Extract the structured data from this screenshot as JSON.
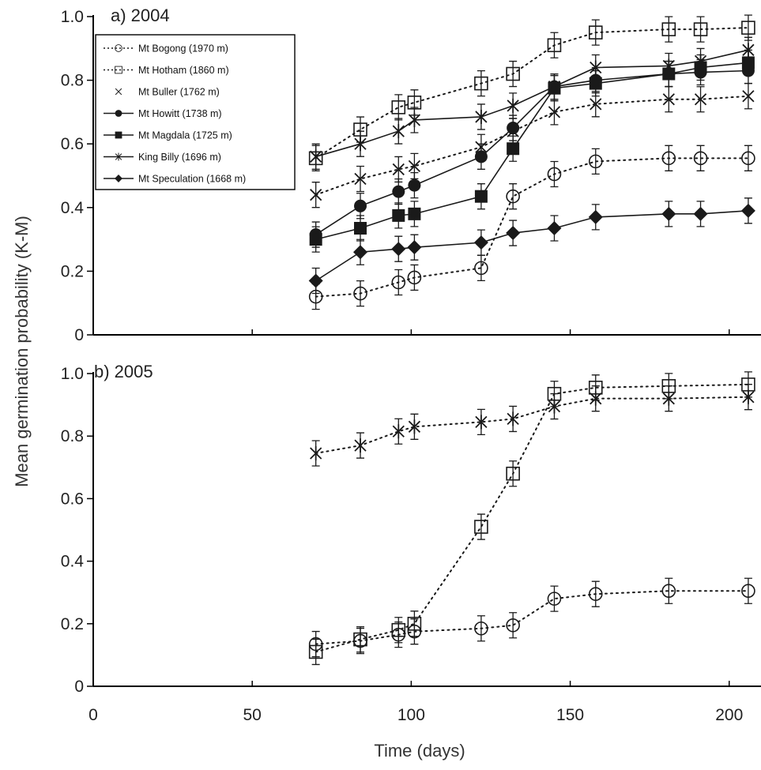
{
  "chart_data": {
    "type": "line",
    "xlabel": "Time (days)",
    "ylabel": "Mean germination probability (K-M)",
    "xlim": [
      0,
      210
    ],
    "ylim": [
      0,
      1.0
    ],
    "x_ticks": [
      "0",
      "50",
      "100",
      "150",
      "200"
    ],
    "y_ticks": [
      "0",
      "0.2",
      "0.4",
      "0.6",
      "0.8",
      "1.0"
    ],
    "legend_position": "top-left of panel a",
    "panels": [
      {
        "label": "a) 2004",
        "series": [
          {
            "name": "Mt Bogong (1970 m)",
            "marker": "open-circle",
            "line": "dotted",
            "x": [
              70,
              84,
              96,
              101,
              122,
              132,
              145,
              158,
              181,
              191,
              206
            ],
            "y": [
              0.12,
              0.13,
              0.165,
              0.18,
              0.21,
              0.435,
              0.505,
              0.545,
              0.555,
              0.555,
              0.555
            ]
          },
          {
            "name": "Mt Hotham (1860 m)",
            "marker": "open-square",
            "line": "dotted",
            "x": [
              70,
              84,
              96,
              101,
              122,
              132,
              145,
              158,
              181,
              191,
              206
            ],
            "y": [
              0.555,
              0.645,
              0.715,
              0.73,
              0.79,
              0.82,
              0.91,
              0.95,
              0.96,
              0.96,
              0.965
            ]
          },
          {
            "name": "Mt Buller (1762 m)",
            "marker": "x",
            "line": "dotted",
            "x": [
              70,
              84,
              96,
              101,
              122,
              132,
              145,
              158,
              181,
              191,
              206
            ],
            "y": [
              0.44,
              0.49,
              0.52,
              0.53,
              0.59,
              0.64,
              0.7,
              0.725,
              0.74,
              0.74,
              0.75
            ]
          },
          {
            "name": "Mt Howitt (1738 m)",
            "marker": "filled-circle",
            "line": "solid",
            "x": [
              70,
              84,
              96,
              101,
              122,
              132,
              145,
              158,
              181,
              191,
              206
            ],
            "y": [
              0.315,
              0.405,
              0.45,
              0.47,
              0.56,
              0.65,
              0.78,
              0.8,
              0.82,
              0.825,
              0.83
            ]
          },
          {
            "name": "Mt Magdala (1725 m)",
            "marker": "filled-square",
            "line": "solid",
            "x": [
              70,
              84,
              96,
              101,
              122,
              132,
              145,
              158,
              181,
              191,
              206
            ],
            "y": [
              0.3,
              0.335,
              0.375,
              0.38,
              0.435,
              0.585,
              0.775,
              0.79,
              0.82,
              0.84,
              0.855
            ]
          },
          {
            "name": "King Billy (1696 m)",
            "marker": "star",
            "line": "solid",
            "x": [
              70,
              84,
              96,
              101,
              122,
              132,
              145,
              158,
              181,
              191,
              206
            ],
            "y": [
              0.56,
              0.6,
              0.64,
              0.675,
              0.685,
              0.72,
              0.78,
              0.84,
              0.845,
              0.86,
              0.895
            ]
          },
          {
            "name": "Mt Speculation (1668 m)",
            "marker": "filled-diamond",
            "line": "solid",
            "x": [
              70,
              84,
              96,
              101,
              122,
              132,
              145,
              158,
              181,
              191,
              206
            ],
            "y": [
              0.17,
              0.26,
              0.27,
              0.275,
              0.29,
              0.32,
              0.335,
              0.37,
              0.38,
              0.38,
              0.39
            ]
          }
        ]
      },
      {
        "label": "b) 2005",
        "series": [
          {
            "name": "Mt Bogong (1970 m)",
            "marker": "open-circle",
            "line": "dotted",
            "x": [
              70,
              84,
              96,
              101,
              122,
              132,
              145,
              158,
              181,
              206
            ],
            "y": [
              0.135,
              0.145,
              0.165,
              0.175,
              0.185,
              0.195,
              0.28,
              0.295,
              0.305,
              0.305
            ]
          },
          {
            "name": "Mt Hotham (1860 m)",
            "marker": "open-square",
            "line": "dotted",
            "x": [
              70,
              84,
              96,
              101,
              122,
              132,
              145,
              158,
              181,
              206
            ],
            "y": [
              0.11,
              0.15,
              0.18,
              0.2,
              0.51,
              0.68,
              0.935,
              0.955,
              0.96,
              0.965
            ]
          },
          {
            "name": "King Billy (1696 m)",
            "marker": "star",
            "line": "dotted",
            "x": [
              70,
              84,
              96,
              101,
              122,
              132,
              145,
              158,
              181,
              206
            ],
            "y": [
              0.745,
              0.77,
              0.815,
              0.83,
              0.845,
              0.855,
              0.895,
              0.92,
              0.92,
              0.925
            ]
          }
        ]
      }
    ]
  }
}
